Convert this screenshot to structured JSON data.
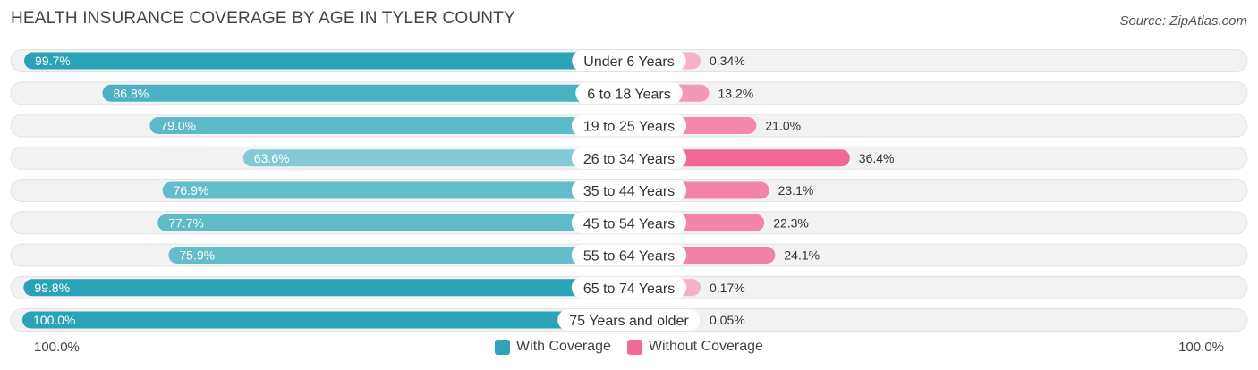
{
  "title": "HEALTH INSURANCE COVERAGE BY AGE IN TYLER COUNTY",
  "source": "Source: ZipAtlas.com",
  "axis": {
    "left_label": "100.0%",
    "right_label": "100.0%"
  },
  "legend": [
    {
      "label": "With Coverage",
      "color": "#2ea4b6"
    },
    {
      "label": "Without Coverage",
      "color": "#f06b96"
    }
  ],
  "chart_data": {
    "type": "bar",
    "orientation": "horizontal-diverging",
    "title": "HEALTH INSURANCE COVERAGE BY AGE IN TYLER COUNTY",
    "categories": [
      "Under 6 Years",
      "6 to 18 Years",
      "19 to 25 Years",
      "26 to 34 Years",
      "35 to 44 Years",
      "45 to 54 Years",
      "55 to 64 Years",
      "65 to 74 Years",
      "75 Years and older"
    ],
    "series": [
      {
        "name": "With Coverage",
        "values": [
          99.7,
          86.8,
          79.0,
          63.6,
          76.9,
          77.7,
          75.9,
          99.8,
          100.0
        ],
        "labels": [
          "99.7%",
          "86.8%",
          "79.0%",
          "63.6%",
          "76.9%",
          "77.7%",
          "75.9%",
          "99.8%",
          "100.0%"
        ]
      },
      {
        "name": "Without Coverage",
        "values": [
          0.34,
          13.2,
          21.0,
          36.4,
          23.1,
          22.3,
          24.1,
          0.17,
          0.05
        ],
        "labels": [
          "0.34%",
          "13.2%",
          "21.0%",
          "36.4%",
          "23.1%",
          "22.3%",
          "24.1%",
          "0.17%",
          "0.05%"
        ]
      }
    ],
    "xlim_left": [
      100,
      0
    ],
    "xlim_right": [
      0,
      100
    ],
    "legend_position": "bottom-center"
  }
}
